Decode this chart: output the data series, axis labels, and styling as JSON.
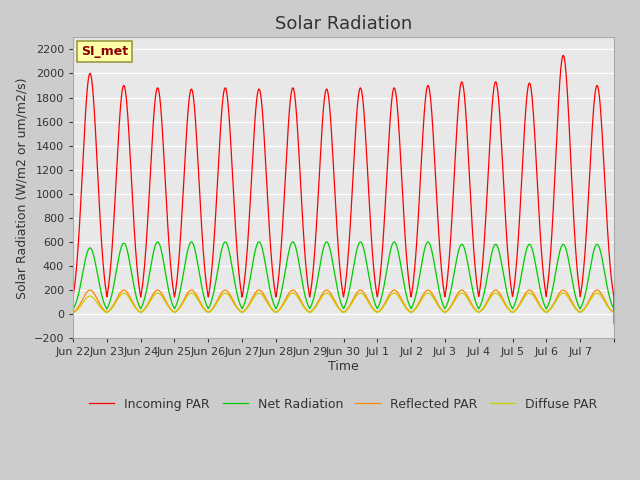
{
  "title": "Solar Radiation",
  "ylabel": "Solar Radiation (W/m2 or um/m2/s)",
  "xlabel": "Time",
  "ylim": [
    -200,
    2300
  ],
  "yticks": [
    -200,
    0,
    200,
    400,
    600,
    800,
    1000,
    1200,
    1400,
    1600,
    1800,
    2000,
    2200
  ],
  "x_tick_positions": [
    0,
    1,
    2,
    3,
    4,
    5,
    6,
    7,
    8,
    9,
    10,
    11,
    12,
    13,
    14,
    15,
    16
  ],
  "x_tick_labels": [
    "Jun 22",
    "Jun 23",
    "Jun 24",
    "Jun 25",
    "Jun 26",
    "Jun 27",
    "Jun 28",
    "Jun 29",
    "Jun 30",
    "Jul 1",
    "Jul 2",
    "Jul 3",
    "Jul 4",
    "Jul 5",
    "Jul 6",
    "Jul 7",
    ""
  ],
  "station_label": "SI_met",
  "fig_bg_color": "#cccccc",
  "plot_bg_color": "#e8e8e8",
  "grid_color": "#ffffff",
  "legend_entries": [
    "Incoming PAR",
    "Reflected PAR",
    "Diffuse PAR",
    "Net Radiation"
  ],
  "line_colors": [
    "#ff0000",
    "#ff8800",
    "#cccc00",
    "#00cc00"
  ],
  "n_days": 16,
  "peaks_incoming": [
    2000,
    1900,
    1880,
    1870,
    1880,
    1870,
    1880,
    1870,
    1880,
    1880,
    1900,
    1930,
    1930,
    1920,
    2150,
    1900
  ],
  "peaks_reflected": [
    200,
    200,
    200,
    200,
    200,
    200,
    200,
    200,
    200,
    200,
    200,
    200,
    200,
    200,
    200,
    200
  ],
  "peaks_diffuse": [
    150,
    175,
    175,
    175,
    175,
    175,
    175,
    175,
    175,
    175,
    175,
    175,
    175,
    175,
    175,
    175
  ],
  "peaks_net": [
    550,
    590,
    600,
    600,
    600,
    600,
    600,
    600,
    600,
    600,
    600,
    580,
    580,
    580,
    580,
    580
  ],
  "night_net": -80,
  "title_fontsize": 13,
  "label_fontsize": 9,
  "tick_fontsize": 8
}
